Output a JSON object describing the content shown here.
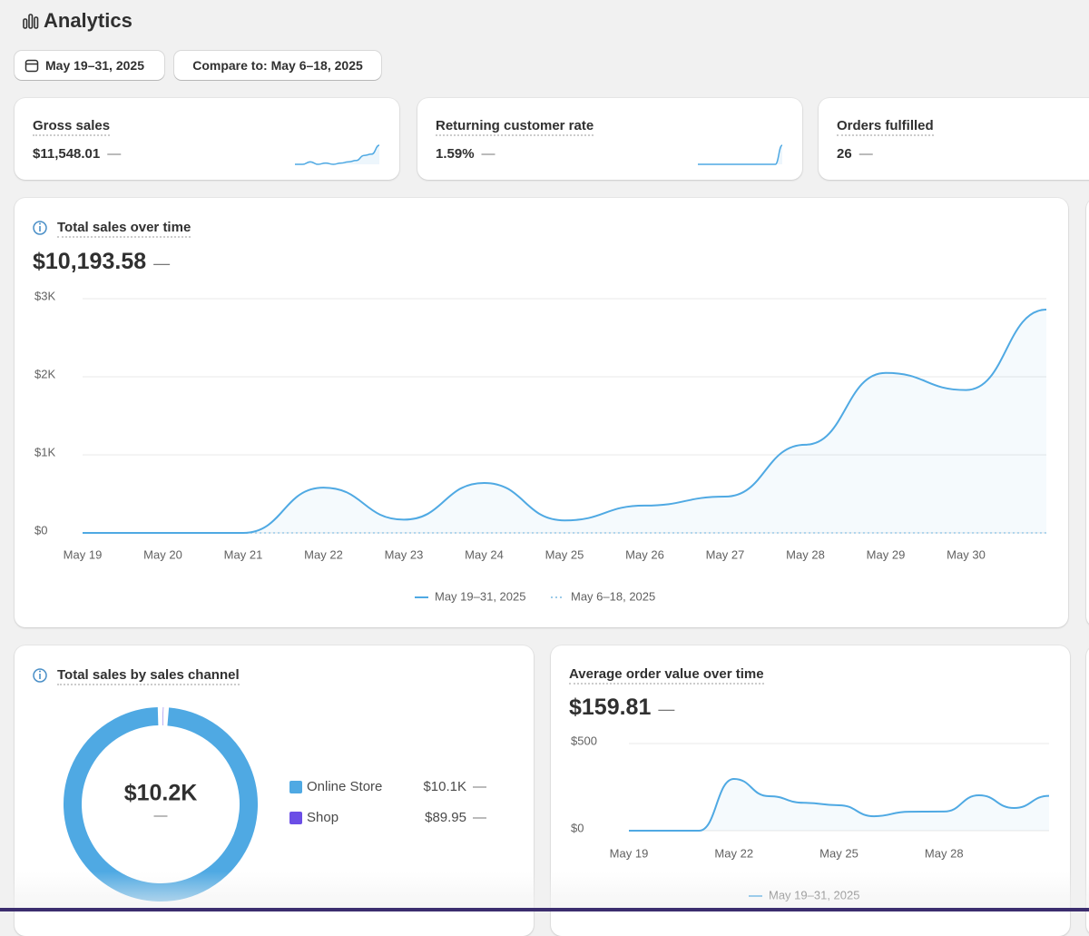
{
  "header": {
    "title": "Analytics"
  },
  "filters": {
    "date_range": "May 19–31, 2025",
    "compare": "Compare to: May 6–18, 2025"
  },
  "metrics": [
    {
      "label": "Gross sales",
      "value": "$11,548.01",
      "change": "—",
      "sparkline": {
        "type": "line",
        "color": "#4fa9e3",
        "values": [
          2,
          2,
          4,
          2,
          3,
          2,
          3,
          4,
          5,
          9,
          10,
          17
        ]
      }
    },
    {
      "label": "Returning customer rate",
      "value": "1.59%",
      "change": "—",
      "sparkline": {
        "type": "line",
        "color": "#4fa9e3",
        "values": [
          0,
          0,
          0,
          0,
          0,
          0,
          0,
          0,
          0,
          0,
          0,
          0,
          10
        ]
      }
    },
    {
      "label": "Orders fulfilled",
      "value": "26",
      "change": "—"
    }
  ],
  "sales_over_time": {
    "type": "line",
    "title": "Total sales over time",
    "total": "$10,193.58",
    "change": "—",
    "categories": [
      "May 19",
      "May 20",
      "May 21",
      "May 22",
      "May 23",
      "May 24",
      "May 25",
      "May 26",
      "May 27",
      "May 28",
      "May 29",
      "May 30",
      null
    ],
    "series": [
      {
        "name": "May 19–31, 2025",
        "color": "#4fa9e3",
        "style": "solid",
        "values": [
          0,
          0,
          0,
          580,
          170,
          640,
          160,
          350,
          465,
          1130,
          2050,
          1830,
          2860
        ]
      },
      {
        "name": "May 6–18, 2025",
        "color": "#9ccbe9",
        "style": "dotted",
        "values": [
          0,
          0,
          0,
          0,
          0,
          0,
          0,
          0,
          0,
          0,
          0,
          0,
          0
        ]
      }
    ],
    "ylim": [
      0,
      3000
    ],
    "yticks": [
      {
        "value": 0,
        "label": "$0"
      },
      {
        "value": 1000,
        "label": "$1K"
      },
      {
        "value": 2000,
        "label": "$2K"
      },
      {
        "value": 3000,
        "label": "$3K"
      }
    ],
    "grid": true,
    "legend": "bottom"
  },
  "sales_by_channel": {
    "type": "donut",
    "title": "Total sales by sales channel",
    "total": "$10.2K",
    "change": "—",
    "categories": [
      "Online Store",
      "Shop"
    ],
    "values": [
      10103.63,
      89.95
    ],
    "value_labels": [
      "$10.1K",
      "$89.95"
    ],
    "changes": [
      "—",
      "—"
    ],
    "colors": [
      "#4fa9e3",
      "#6b4ee6"
    ]
  },
  "aov_over_time": {
    "type": "line",
    "title": "Average order value over time",
    "total": "$159.81",
    "change": "—",
    "categories": [
      "May 19",
      null,
      null,
      "May 22",
      null,
      null,
      "May 25",
      null,
      null,
      "May 28",
      null,
      null,
      null
    ],
    "series": [
      {
        "name": "May 19–31, 2025",
        "color": "#4fa9e3",
        "style": "solid",
        "values": [
          0,
          0,
          0,
          297,
          198,
          160,
          146,
          83,
          109,
          110,
          203,
          130,
          200
        ]
      }
    ],
    "ylim": [
      0,
      500
    ],
    "yticks": [
      {
        "value": 0,
        "label": "$0"
      },
      {
        "value": 500,
        "label": "$500"
      }
    ],
    "grid": true,
    "legend": "bottom"
  }
}
